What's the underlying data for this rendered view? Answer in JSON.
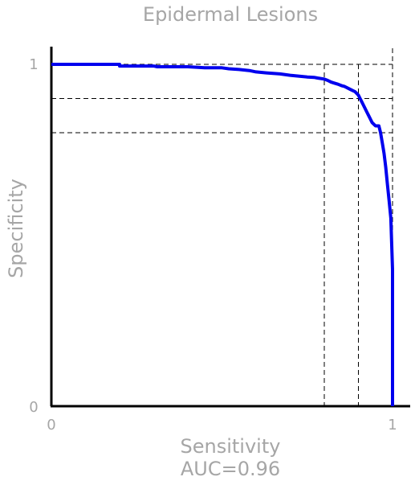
{
  "chart_data": {
    "type": "line",
    "title": "Epidermal Lesions",
    "xlabel": "Sensitivity",
    "ylabel": "Specificity",
    "annotation": "AUC=0.96",
    "xlim": [
      0,
      1
    ],
    "ylim": [
      0,
      1
    ],
    "x_ticks": [
      "0",
      "1"
    ],
    "y_ticks": [
      "0",
      "1"
    ],
    "grid": false,
    "line_color": "#0000ee",
    "reference_lines": {
      "vertical_x": [
        0.8,
        0.9
      ],
      "horizontal_y": [
        0.9,
        0.8
      ]
    },
    "series": [
      {
        "x": [
          0.0,
          0.2,
          0.2,
          0.3,
          0.31,
          0.4,
          0.45,
          0.5,
          0.52,
          0.55,
          0.58,
          0.6,
          0.63,
          0.67,
          0.7,
          0.73,
          0.75,
          0.77,
          0.78,
          0.8,
          0.81,
          0.82,
          0.83,
          0.84,
          0.85,
          0.86,
          0.87,
          0.88,
          0.89,
          0.9,
          0.905,
          0.91,
          0.915,
          0.92,
          0.925,
          0.93,
          0.935,
          0.94,
          0.95,
          0.96,
          0.965,
          0.97,
          0.975,
          0.98,
          0.985,
          0.99,
          0.995,
          1.0,
          1.0
        ],
        "y": [
          1.0,
          1.0,
          0.995,
          0.995,
          0.993,
          0.993,
          0.99,
          0.99,
          0.987,
          0.985,
          0.982,
          0.978,
          0.975,
          0.972,
          0.968,
          0.965,
          0.963,
          0.962,
          0.96,
          0.957,
          0.953,
          0.948,
          0.945,
          0.942,
          0.938,
          0.935,
          0.93,
          0.925,
          0.92,
          0.91,
          0.9,
          0.89,
          0.88,
          0.87,
          0.86,
          0.85,
          0.84,
          0.83,
          0.82,
          0.82,
          0.8,
          0.77,
          0.74,
          0.7,
          0.65,
          0.6,
          0.55,
          0.4,
          0.0
        ]
      }
    ]
  }
}
